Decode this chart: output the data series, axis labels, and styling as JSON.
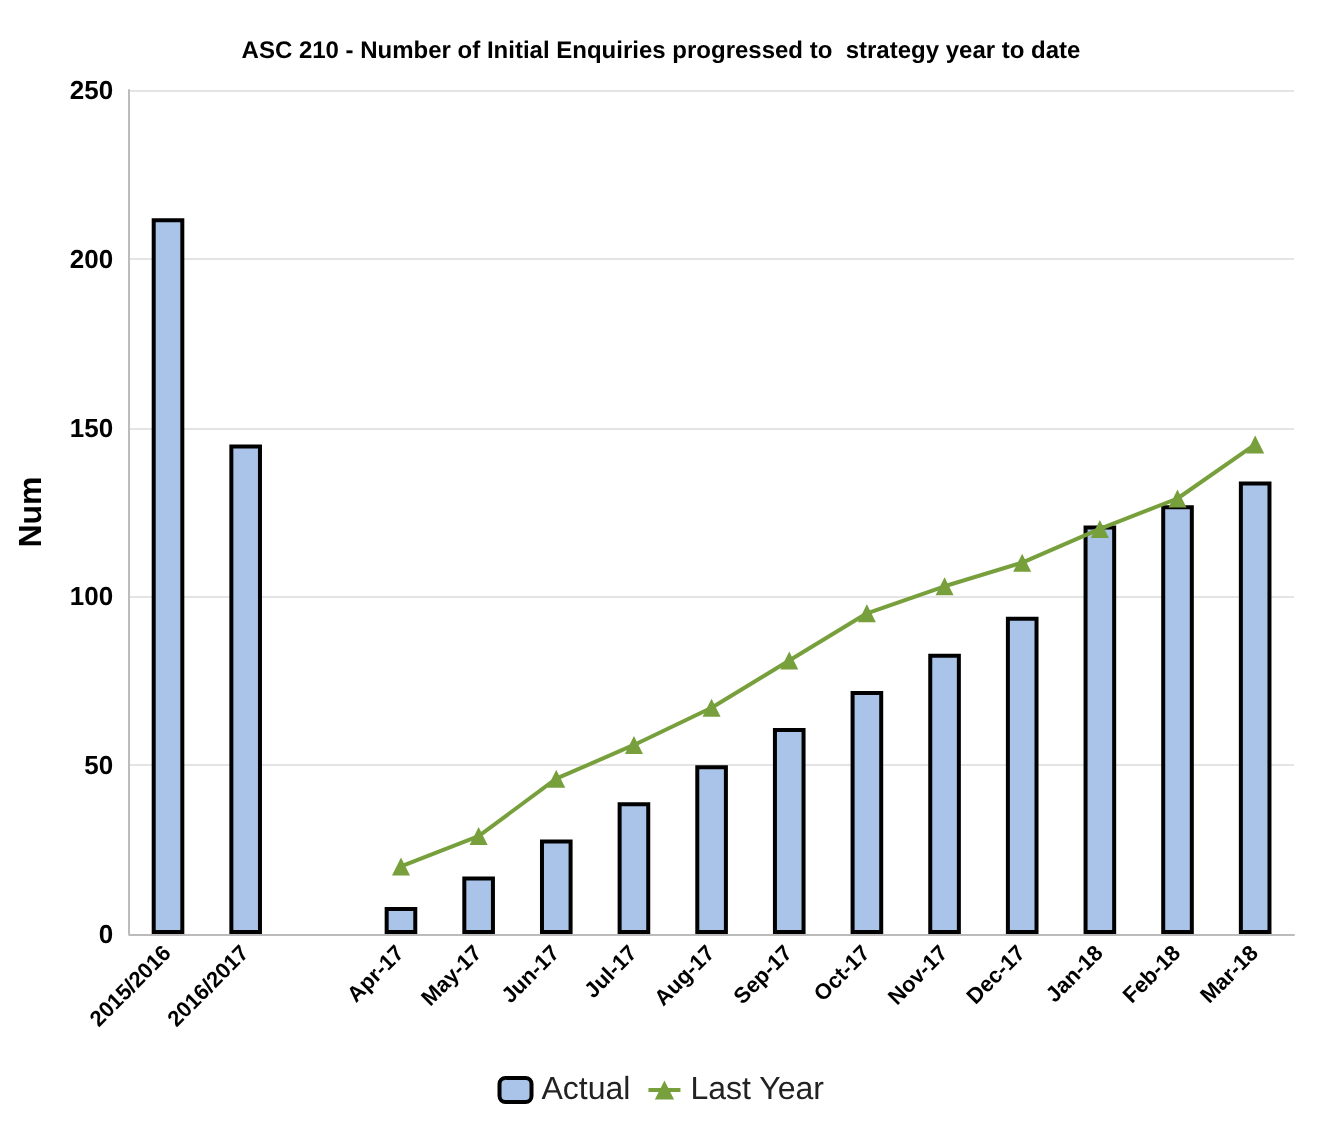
{
  "chart_data": {
    "type": "bar",
    "title": "ASC 210 - Number of Initial Enquiries progressed to  strategy year to date",
    "ylabel": "Num",
    "categories": [
      "2015/2016",
      "2016/2017",
      null,
      "Apr-17",
      "May-17",
      "Jun-17",
      "Jul-17",
      "Aug-17",
      "Sep-17",
      "Oct-17",
      "Nov-17",
      "Dec-17",
      "Jan-18",
      "Feb-18",
      "Mar-18"
    ],
    "series": [
      {
        "name": "Actual",
        "color": "#a9c4e8",
        "values": [
          212,
          145,
          null,
          8,
          17,
          28,
          39,
          50,
          61,
          72,
          83,
          94,
          121,
          127,
          134
        ]
      },
      {
        "name": "Last Year",
        "type": "line",
        "color": "#77a03c",
        "marker": "triangle",
        "values": [
          null,
          null,
          null,
          20,
          29,
          46,
          56,
          67,
          81,
          95,
          103,
          110,
          120,
          129,
          145
        ]
      }
    ],
    "ylim": [
      0,
      250
    ],
    "yticks": [
      0,
      50,
      100,
      150,
      200,
      250
    ],
    "grid": "y",
    "legend": "bottom"
  }
}
